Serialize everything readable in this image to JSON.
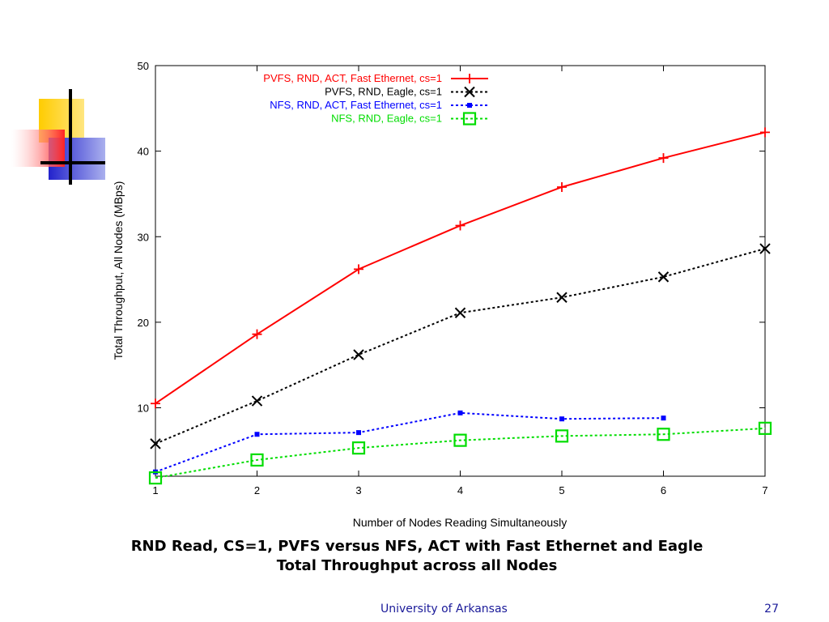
{
  "chart_data": {
    "type": "line",
    "xlabel": "Number of Nodes Reading Simultaneously",
    "ylabel": "Total Throughput, All Nodes (MBps)",
    "xlim": [
      1,
      7
    ],
    "ylim": [
      2,
      50
    ],
    "xticks": [
      1,
      2,
      3,
      4,
      5,
      6,
      7
    ],
    "yticks": [
      10,
      20,
      30,
      40,
      50
    ],
    "grid": false,
    "legend_position": "top-right",
    "series": [
      {
        "name": "PVFS, RND, ACT, Fast Ethernet, cs=1",
        "color": "#ff0000",
        "dash": "solid",
        "marker": "plus",
        "x": [
          1,
          2,
          3,
          4,
          5,
          6,
          7
        ],
        "y": [
          10.5,
          18.6,
          26.2,
          31.3,
          35.8,
          39.2,
          42.2
        ]
      },
      {
        "name": "PVFS, RND, Eagle, cs=1",
        "color": "#000000",
        "dash": "dotted",
        "marker": "cross",
        "x": [
          1,
          2,
          3,
          4,
          5,
          6,
          7
        ],
        "y": [
          5.8,
          10.8,
          16.2,
          21.1,
          22.9,
          25.3,
          28.6
        ]
      },
      {
        "name": "NFS, RND, ACT, Fast Ethernet, cs=1",
        "color": "#0000ff",
        "dash": "dotted",
        "marker": "filled-square",
        "x": [
          1,
          2,
          3,
          4,
          5,
          6
        ],
        "y": [
          2.5,
          6.9,
          7.1,
          9.4,
          8.7,
          8.8
        ]
      },
      {
        "name": "NFS, RND, Eagle, cs=1",
        "color": "#00dd00",
        "dash": "dotted",
        "marker": "open-square",
        "x": [
          1,
          2,
          3,
          4,
          5,
          6,
          7
        ],
        "y": [
          1.8,
          3.9,
          5.3,
          6.2,
          6.7,
          6.9,
          7.6
        ]
      }
    ]
  },
  "caption": {
    "line1": "RND Read, CS=1, PVFS versus NFS, ACT with Fast Ethernet and Eagle",
    "line2": "Total Throughput across all Nodes"
  },
  "footer": {
    "organization": "University of Arkansas",
    "page_number": "27"
  },
  "colors": {
    "deco_yellow": "#ffcc00",
    "deco_red": "#ff3333",
    "deco_blue": "#3333cc",
    "footer_text": "#1a1a99"
  }
}
